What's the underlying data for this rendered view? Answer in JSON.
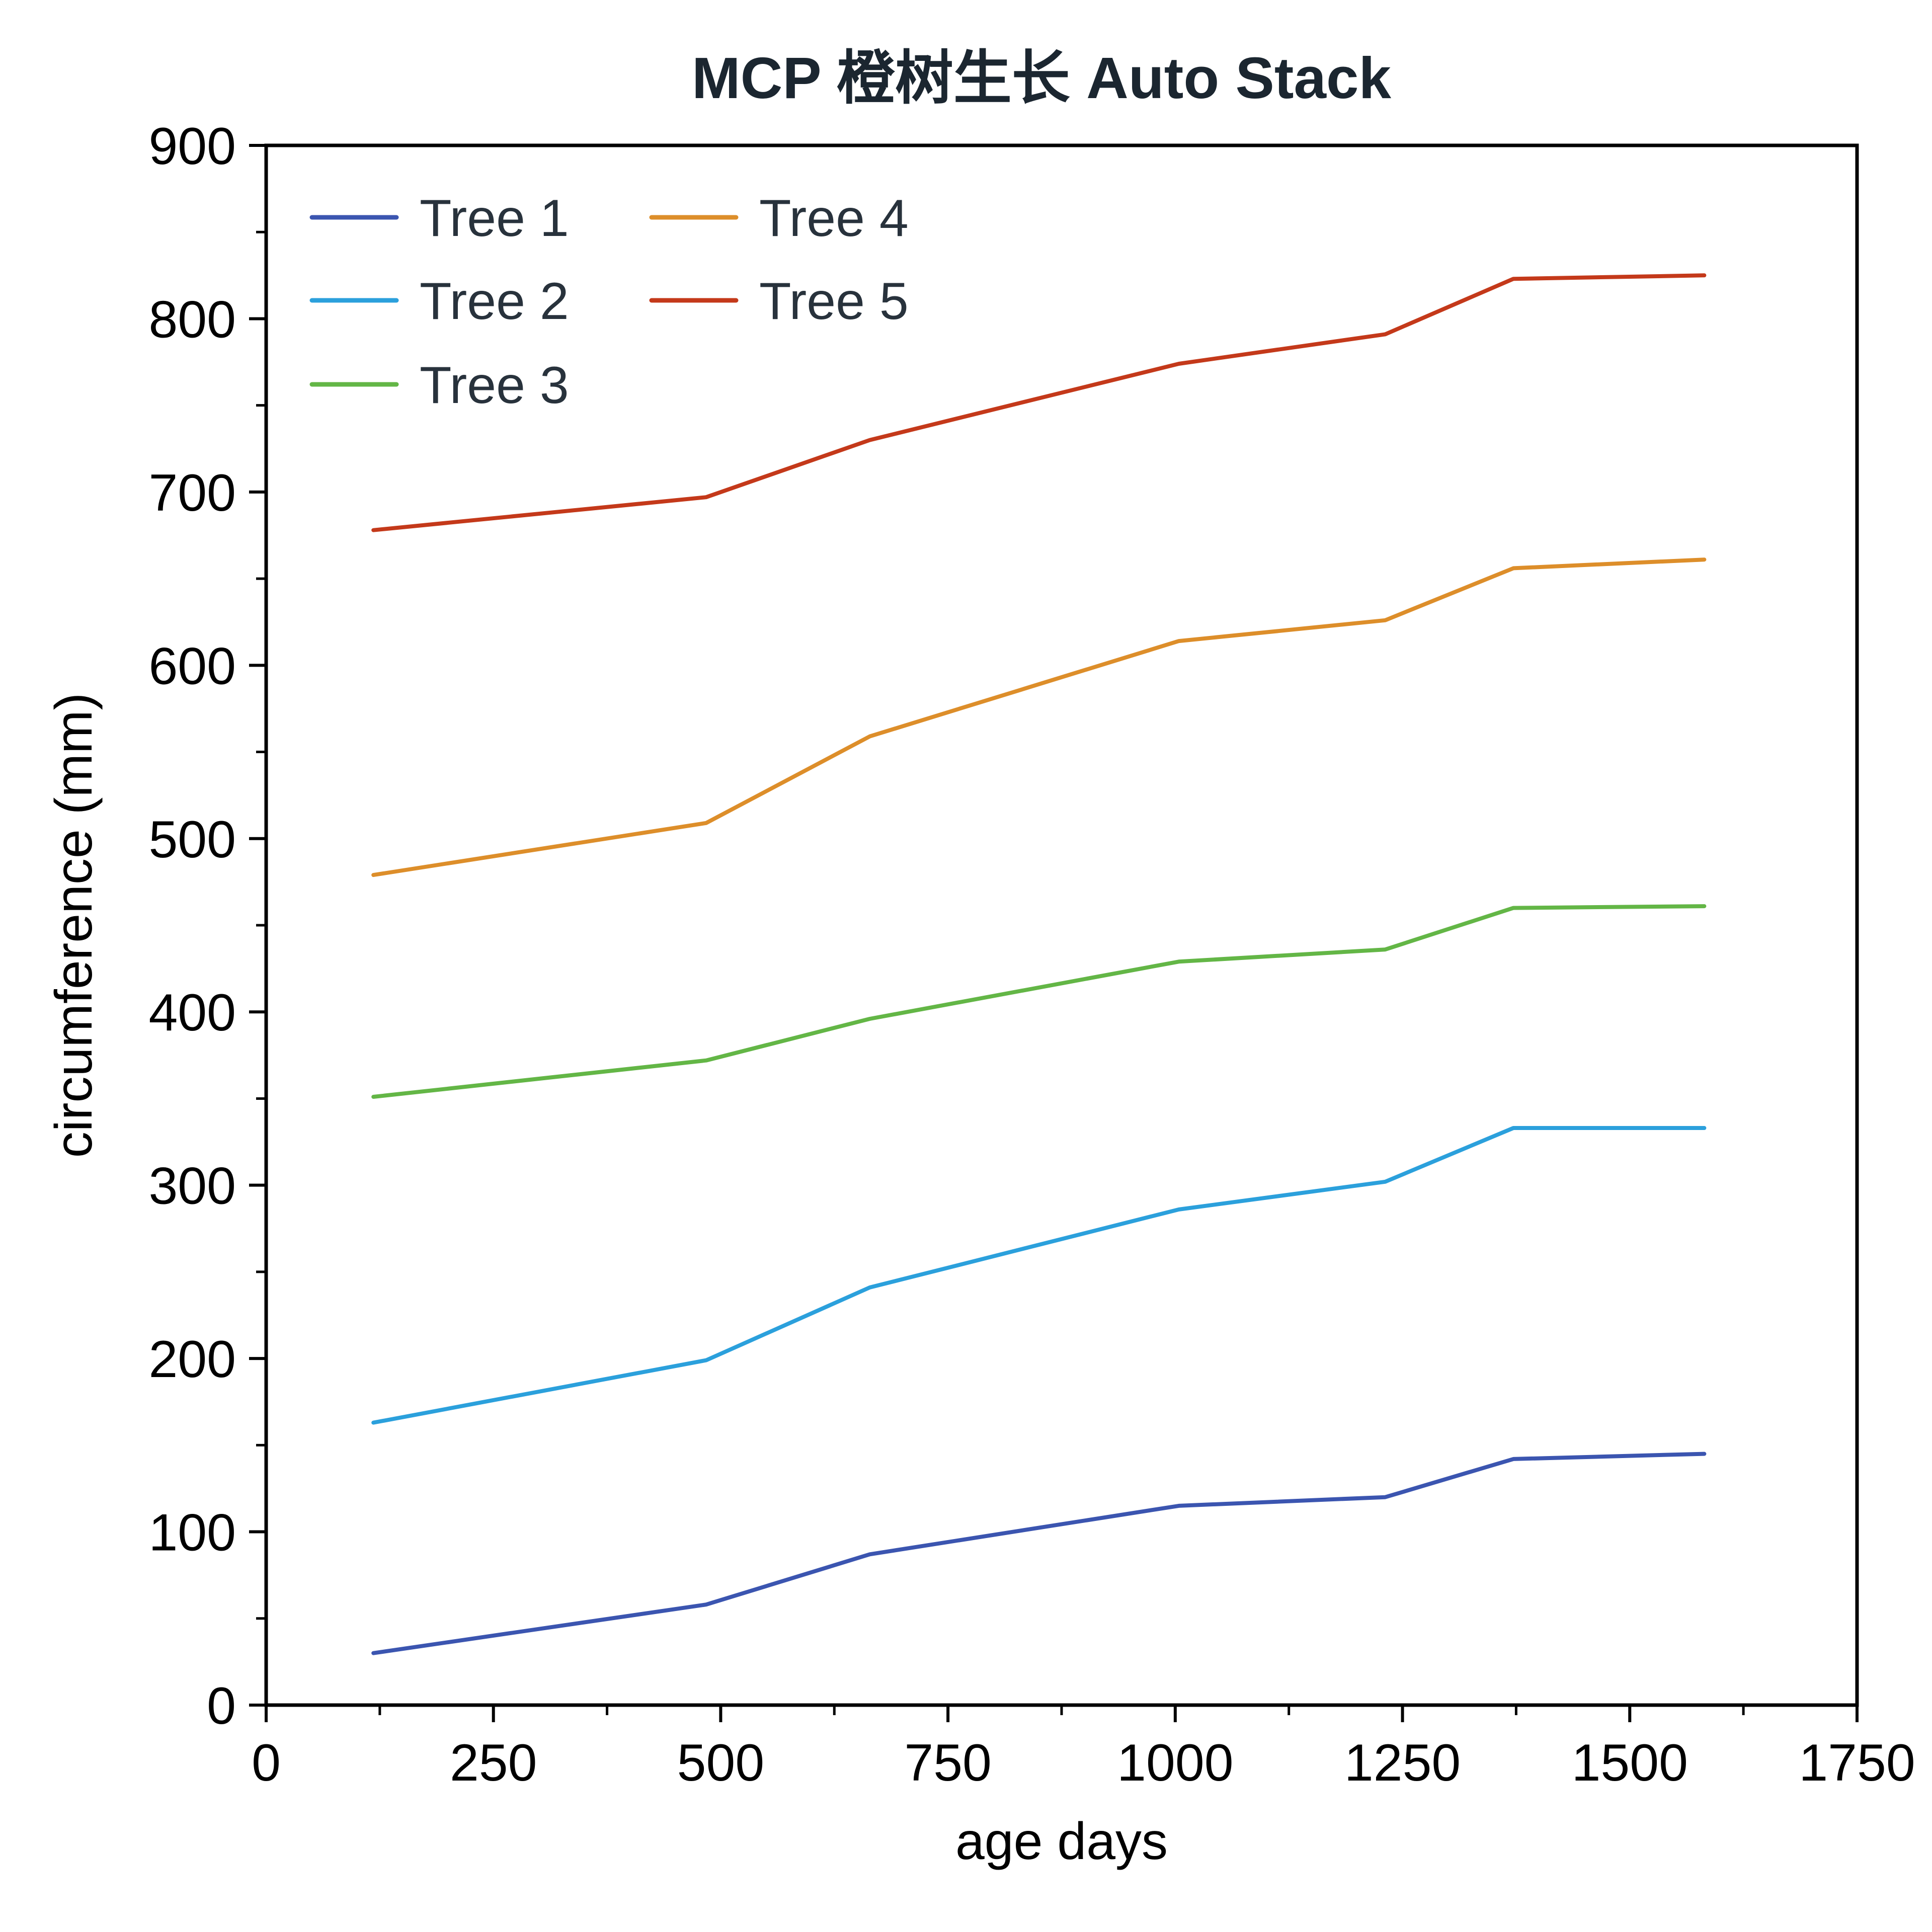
{
  "chart_data": {
    "type": "line",
    "title": "MCP 橙树生长 Auto Stack",
    "xlabel": "age days",
    "ylabel": "circumference (mm)",
    "xlim": [
      0,
      1750
    ],
    "ylim": [
      0,
      900
    ],
    "x_ticks": [
      "0",
      "250",
      "500",
      "750",
      "1000",
      "1250",
      "1500",
      "1750"
    ],
    "y_ticks": [
      "0",
      "100",
      "200",
      "300",
      "400",
      "500",
      "600",
      "700",
      "800",
      "900"
    ],
    "grid": false,
    "legend_position": "top-left",
    "x": [
      118,
      484,
      664,
      1004,
      1231,
      1372,
      1582
    ],
    "series": [
      {
        "name": "Tree 1",
        "color": "#3b55b0",
        "values": [
          30,
          58,
          87,
          115,
          120,
          142,
          145
        ]
      },
      {
        "name": "Tree 2",
        "color": "#2ba0dc",
        "values": [
          163,
          199,
          241,
          286,
          302,
          333,
          333
        ]
      },
      {
        "name": "Tree 3",
        "color": "#63b646",
        "values": [
          351,
          372,
          396,
          429,
          436,
          460,
          461
        ]
      },
      {
        "name": "Tree 4",
        "color": "#dd8e2a",
        "values": [
          479,
          509,
          559,
          614,
          626,
          656,
          661
        ]
      },
      {
        "name": "Tree 5",
        "color": "#c4391a",
        "values": [
          678,
          697,
          730,
          774,
          791,
          823,
          825
        ]
      }
    ]
  }
}
